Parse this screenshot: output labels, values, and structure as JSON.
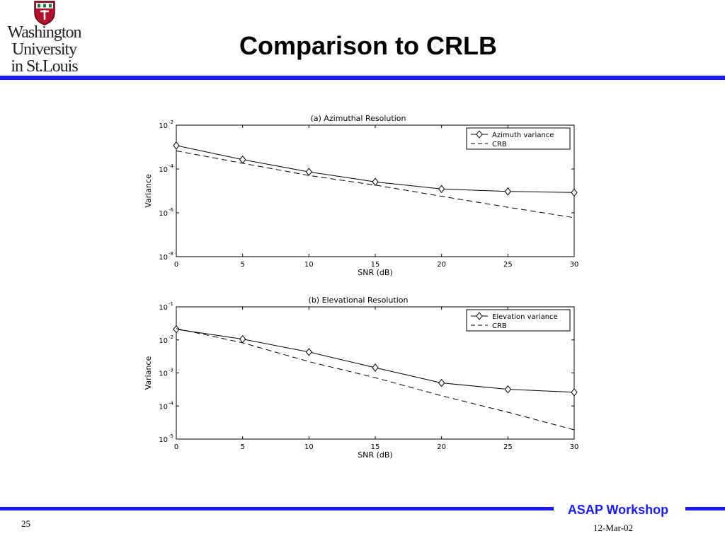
{
  "slide": {
    "title": "Comparison to CRLB",
    "page_number": "25",
    "footer_brand": "ASAP Workshop",
    "footer_date": "12-Mar-02",
    "logo_lines": [
      "Washington",
      "University",
      "in St.Louis"
    ]
  },
  "colors": {
    "accent": "#1a1aff",
    "logo_red": "#b30f2a",
    "ink": "#000000"
  },
  "chart_data": [
    {
      "type": "line",
      "title": "(a) Azimuthal Resolution",
      "xlabel": "SNR (dB)",
      "ylabel": "Variance",
      "xlim": [
        0,
        30
      ],
      "ylim": [
        1e-08,
        0.01
      ],
      "yscale": "log",
      "xticks": [
        "0",
        "5",
        "10",
        "15",
        "20",
        "25",
        "30"
      ],
      "ytick_exponents": [
        "-2",
        "-4",
        "-6",
        "-8"
      ],
      "x": [
        0,
        5,
        10,
        15,
        20,
        25,
        30
      ],
      "series": [
        {
          "name": "Azimuth variance",
          "style": "solid-diamond",
          "values": [
            0.00118,
            0.000269,
            7.39e-05,
            2.59e-05,
            1.22e-05,
            9.4e-06,
            8.4e-06
          ]
        },
        {
          "name": "CRB",
          "style": "dashed",
          "values": [
            0.00067,
            0.000182,
            5.05e-05,
            1.84e-05,
            5.7e-06,
            1.8e-06,
            6e-07
          ]
        }
      ],
      "legend": "top-right",
      "grid": false
    },
    {
      "type": "line",
      "title": "(b) Elevational Resolution",
      "xlabel": "SNR (dB)",
      "ylabel": "Variance",
      "xlim": [
        0,
        30
      ],
      "ylim": [
        1e-05,
        0.1
      ],
      "yscale": "log",
      "xticks": [
        "0",
        "5",
        "10",
        "15",
        "20",
        "25",
        "30"
      ],
      "ytick_exponents": [
        "-1",
        "-2",
        "-3",
        "-4",
        "-5"
      ],
      "x": [
        0,
        5,
        10,
        15,
        20,
        25,
        30
      ],
      "series": [
        {
          "name": "Elevation variance",
          "style": "solid-diamond",
          "values": [
            0.021,
            0.0106,
            0.0043,
            0.00145,
            0.0005,
            0.00032,
            0.00026
          ]
        },
        {
          "name": "CRB",
          "style": "dashed",
          "values": [
            0.022,
            0.0082,
            0.0022,
            0.00072,
            0.000205,
            6.5e-05,
            1.9e-05
          ]
        }
      ],
      "legend": "top-right",
      "grid": false
    }
  ]
}
